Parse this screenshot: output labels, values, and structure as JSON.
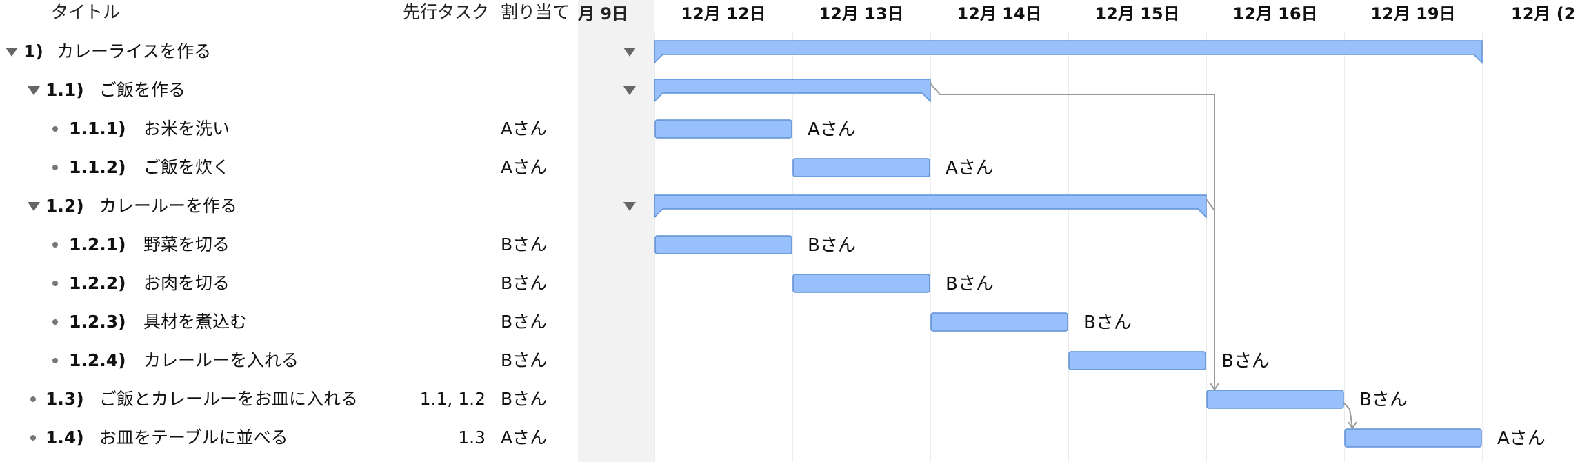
{
  "header": {
    "title_col": "タイトル",
    "pred_col": "先行タスク",
    "assign_col": "割り当て",
    "partial_date": "月 9日",
    "dates": [
      "12月 12日",
      "12月 13日",
      "12月 14日",
      "12月 15日",
      "12月 16日",
      "12月 19日",
      "12月 (2"
    ]
  },
  "rows": [
    {
      "num": "1)",
      "title": "カレーライスを作る",
      "pred": "",
      "assign": "",
      "bar_label": "",
      "kind": "group",
      "level": 0,
      "start": 0,
      "end": 6
    },
    {
      "num": "1.1)",
      "title": "ご飯を作る",
      "pred": "",
      "assign": "",
      "bar_label": "",
      "kind": "group",
      "level": 1,
      "start": 0,
      "end": 2
    },
    {
      "num": "1.1.1)",
      "title": "お米を洗い",
      "pred": "",
      "assign": "Aさん",
      "bar_label": "Aさん",
      "kind": "task",
      "level": 2,
      "start": 0,
      "end": 1
    },
    {
      "num": "1.1.2)",
      "title": "ご飯を炊く",
      "pred": "",
      "assign": "Aさん",
      "bar_label": "Aさん",
      "kind": "task",
      "level": 2,
      "start": 1,
      "end": 2
    },
    {
      "num": "1.2)",
      "title": "カレールーを作る",
      "pred": "",
      "assign": "",
      "bar_label": "",
      "kind": "group",
      "level": 1,
      "start": 0,
      "end": 4
    },
    {
      "num": "1.2.1)",
      "title": "野菜を切る",
      "pred": "",
      "assign": "Bさん",
      "bar_label": "Bさん",
      "kind": "task",
      "level": 2,
      "start": 0,
      "end": 1
    },
    {
      "num": "1.2.2)",
      "title": "お肉を切る",
      "pred": "",
      "assign": "Bさん",
      "bar_label": "Bさん",
      "kind": "task",
      "level": 2,
      "start": 1,
      "end": 2
    },
    {
      "num": "1.2.3)",
      "title": "具材を煮込む",
      "pred": "",
      "assign": "Bさん",
      "bar_label": "Bさん",
      "kind": "task",
      "level": 2,
      "start": 2,
      "end": 3
    },
    {
      "num": "1.2.4)",
      "title": "カレールーを入れる",
      "pred": "",
      "assign": "Bさん",
      "bar_label": "Bさん",
      "kind": "task",
      "level": 2,
      "start": 3,
      "end": 4
    },
    {
      "num": "1.3)",
      "title": "ご飯とカレールーをお皿に入れる",
      "pred": "1.1, 1.2",
      "assign": "Bさん",
      "bar_label": "Bさん",
      "kind": "task",
      "level": 1,
      "start": 4,
      "end": 5
    },
    {
      "num": "1.4)",
      "title": "お皿をテーブルに並べる",
      "pred": "1.3",
      "assign": "Aさん",
      "bar_label": "Aさん",
      "kind": "task",
      "level": 1,
      "start": 5,
      "end": 6
    }
  ],
  "colors": {
    "bar_fill": "#98c0fb",
    "bar_border": "#5f8fd6",
    "connector": "#9a9a9a"
  }
}
